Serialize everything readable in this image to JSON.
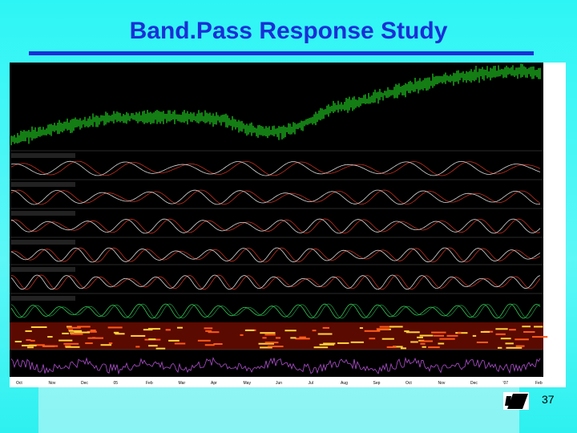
{
  "header": {
    "title": "Band.Pass Response Study"
  },
  "chart": {
    "x_labels": [
      "Oct",
      "Nov",
      "Dec",
      "05",
      "Feb",
      "Mar",
      "Apr",
      "May",
      "Jun",
      "Jul",
      "Aug",
      "Sep",
      "Oct",
      "Nov",
      "Dec",
      "'07",
      "Feb"
    ]
  },
  "footer": {
    "page_number": "37"
  }
}
